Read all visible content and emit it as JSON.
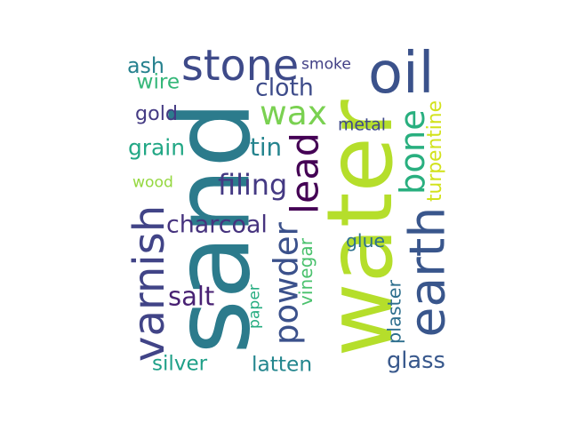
{
  "words": [
    {
      "text": "sand",
      "color": "#2c7b8c"
    },
    {
      "text": "water",
      "color": "#b5de2b"
    },
    {
      "text": "oil",
      "color": "#3b528b"
    },
    {
      "text": "stone",
      "color": "#3e4a89"
    },
    {
      "text": "earth",
      "color": "#39568c"
    },
    {
      "text": "varnish",
      "color": "#414487"
    },
    {
      "text": "powder",
      "color": "#3b518b"
    },
    {
      "text": "wax",
      "color": "#7ad151"
    },
    {
      "text": "lead",
      "color": "#440154"
    },
    {
      "text": "bone",
      "color": "#29af7f"
    },
    {
      "text": "charcoal",
      "color": "#46337e"
    },
    {
      "text": "filing",
      "color": "#443983"
    },
    {
      "text": "cloth",
      "color": "#3e4c8a"
    },
    {
      "text": "tin",
      "color": "#25848e"
    },
    {
      "text": "grain",
      "color": "#22a785"
    },
    {
      "text": "ash",
      "color": "#26818e"
    },
    {
      "text": "wire",
      "color": "#35b779"
    },
    {
      "text": "gold",
      "color": "#443a83"
    },
    {
      "text": "smoke",
      "color": "#424086"
    },
    {
      "text": "metal",
      "color": "#3e4989"
    },
    {
      "text": "turpentine",
      "color": "#d2e21b"
    },
    {
      "text": "wood",
      "color": "#95d840"
    },
    {
      "text": "glue",
      "color": "#2d708e"
    },
    {
      "text": "salt",
      "color": "#482173"
    },
    {
      "text": "paper",
      "color": "#27ad81"
    },
    {
      "text": "vinegar",
      "color": "#4ac16d"
    },
    {
      "text": "plaster",
      "color": "#2e6f8e"
    },
    {
      "text": "silver",
      "color": "#1fa088"
    },
    {
      "text": "latten",
      "color": "#24868e"
    },
    {
      "text": "glass",
      "color": "#38588c"
    }
  ]
}
